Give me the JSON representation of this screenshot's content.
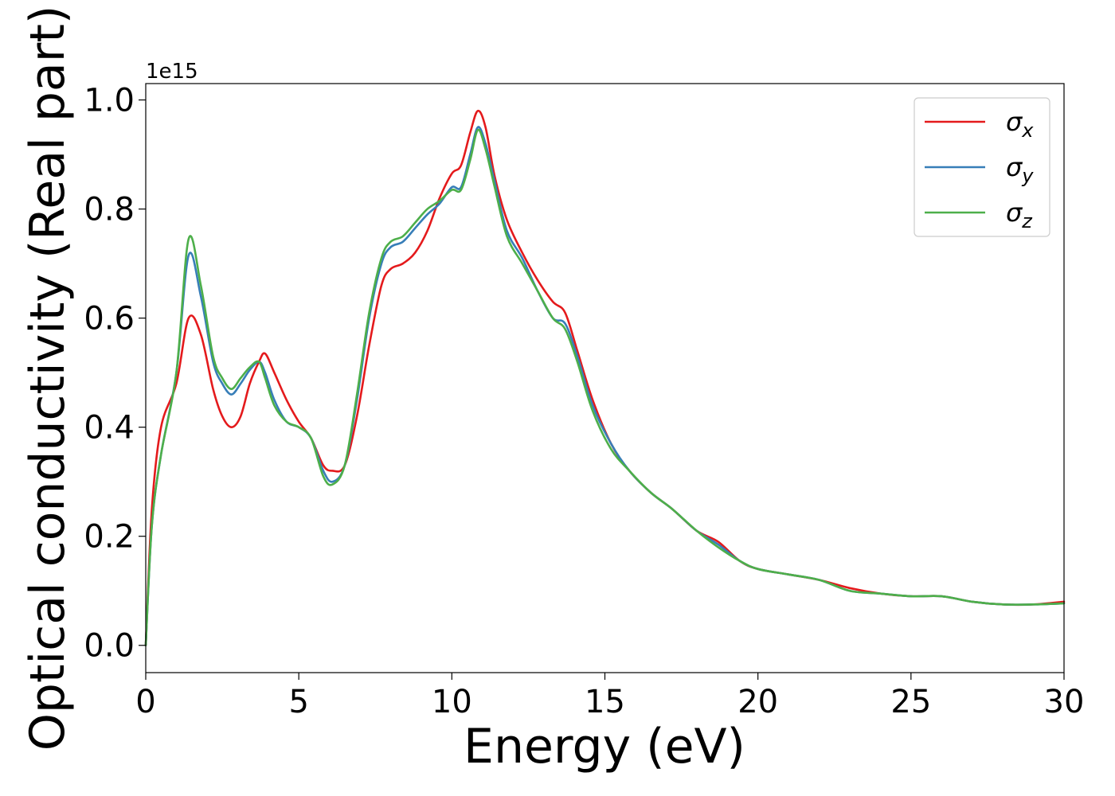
{
  "chart_data": {
    "type": "line",
    "xlabel": "Energy (eV)",
    "ylabel": "Optical conductivity (Real part)",
    "y_offset_text": "1e15",
    "xlim": [
      0,
      30
    ],
    "ylim": [
      -0.05,
      1.03
    ],
    "x_ticks": [
      0,
      5,
      10,
      15,
      20,
      25,
      30
    ],
    "y_ticks": [
      0.0,
      0.2,
      0.4,
      0.6,
      0.8,
      1.0
    ],
    "x_tick_labels": [
      "0",
      "5",
      "10",
      "15",
      "20",
      "25",
      "30"
    ],
    "y_tick_labels": [
      "0.0",
      "0.2",
      "0.4",
      "0.6",
      "0.8",
      "1.0"
    ],
    "grid": false,
    "legend_position": "top-right",
    "legend": [
      {
        "symbol": "σ",
        "sub": "x",
        "color": "#e41a1c"
      },
      {
        "symbol": "σ",
        "sub": "y",
        "color": "#377eb8"
      },
      {
        "symbol": "σ",
        "sub": "z",
        "color": "#4daf4a"
      }
    ],
    "series": [
      {
        "color": "#e41a1c",
        "x": [
          0.0,
          0.2,
          0.5,
          1.0,
          1.4,
          1.8,
          2.2,
          2.5,
          2.8,
          3.1,
          3.4,
          3.7,
          3.9,
          4.2,
          4.6,
          5.0,
          5.4,
          5.8,
          6.1,
          6.5,
          6.9,
          7.3,
          7.7,
          8.0,
          8.4,
          8.8,
          9.2,
          9.6,
          10.0,
          10.3,
          10.6,
          10.85,
          11.1,
          11.4,
          11.8,
          12.3,
          12.8,
          13.3,
          13.7,
          14.1,
          14.6,
          15.2,
          15.8,
          16.5,
          17.2,
          18.0,
          18.7,
          19.4,
          20.0,
          21.0,
          22.0,
          23.0,
          24.0,
          25.0,
          26.0,
          27.0,
          28.0,
          29.0,
          30.0
        ],
        "y": [
          0.0,
          0.25,
          0.4,
          0.48,
          0.6,
          0.57,
          0.47,
          0.42,
          0.4,
          0.42,
          0.48,
          0.52,
          0.535,
          0.5,
          0.45,
          0.41,
          0.38,
          0.33,
          0.32,
          0.33,
          0.42,
          0.55,
          0.66,
          0.69,
          0.7,
          0.72,
          0.76,
          0.82,
          0.865,
          0.88,
          0.94,
          0.98,
          0.95,
          0.86,
          0.78,
          0.72,
          0.67,
          0.63,
          0.61,
          0.54,
          0.45,
          0.37,
          0.32,
          0.28,
          0.25,
          0.21,
          0.19,
          0.155,
          0.14,
          0.13,
          0.12,
          0.105,
          0.095,
          0.09,
          0.09,
          0.08,
          0.075,
          0.075,
          0.08
        ]
      },
      {
        "color": "#377eb8",
        "x": [
          0.0,
          0.2,
          0.5,
          1.0,
          1.4,
          1.8,
          2.2,
          2.5,
          2.8,
          3.1,
          3.4,
          3.7,
          3.9,
          4.2,
          4.6,
          5.0,
          5.4,
          5.8,
          6.1,
          6.5,
          6.9,
          7.3,
          7.7,
          8.0,
          8.4,
          8.8,
          9.2,
          9.6,
          10.0,
          10.3,
          10.6,
          10.85,
          11.1,
          11.4,
          11.8,
          12.3,
          12.8,
          13.3,
          13.7,
          14.1,
          14.6,
          15.2,
          15.8,
          16.5,
          17.2,
          18.0,
          18.7,
          19.4,
          20.0,
          21.0,
          22.0,
          23.0,
          24.0,
          25.0,
          26.0,
          27.0,
          28.0,
          29.0,
          30.0
        ],
        "y": [
          0.0,
          0.22,
          0.35,
          0.5,
          0.715,
          0.64,
          0.52,
          0.48,
          0.46,
          0.48,
          0.505,
          0.52,
          0.5,
          0.45,
          0.41,
          0.4,
          0.38,
          0.32,
          0.3,
          0.33,
          0.45,
          0.6,
          0.7,
          0.73,
          0.74,
          0.765,
          0.79,
          0.81,
          0.84,
          0.84,
          0.9,
          0.95,
          0.92,
          0.85,
          0.76,
          0.71,
          0.65,
          0.6,
          0.59,
          0.53,
          0.44,
          0.37,
          0.32,
          0.28,
          0.25,
          0.21,
          0.185,
          0.155,
          0.14,
          0.13,
          0.12,
          0.1,
          0.095,
          0.09,
          0.09,
          0.08,
          0.075,
          0.075,
          0.077
        ]
      },
      {
        "color": "#4daf4a",
        "x": [
          0.0,
          0.2,
          0.5,
          1.0,
          1.4,
          1.8,
          2.2,
          2.5,
          2.8,
          3.1,
          3.4,
          3.7,
          3.9,
          4.2,
          4.6,
          5.0,
          5.4,
          5.8,
          6.1,
          6.5,
          6.9,
          7.3,
          7.7,
          8.0,
          8.4,
          8.8,
          9.2,
          9.6,
          10.0,
          10.3,
          10.6,
          10.85,
          11.1,
          11.4,
          11.8,
          12.3,
          12.8,
          13.3,
          13.7,
          14.1,
          14.6,
          15.2,
          15.8,
          16.5,
          17.2,
          18.0,
          18.7,
          19.4,
          20.0,
          21.0,
          22.0,
          23.0,
          24.0,
          25.0,
          26.0,
          27.0,
          28.0,
          29.0,
          30.0
        ],
        "y": [
          0.0,
          0.22,
          0.35,
          0.5,
          0.745,
          0.66,
          0.53,
          0.49,
          0.47,
          0.49,
          0.51,
          0.52,
          0.49,
          0.44,
          0.41,
          0.4,
          0.38,
          0.31,
          0.295,
          0.33,
          0.46,
          0.61,
          0.71,
          0.74,
          0.75,
          0.775,
          0.8,
          0.815,
          0.835,
          0.835,
          0.89,
          0.945,
          0.91,
          0.84,
          0.75,
          0.7,
          0.65,
          0.6,
          0.58,
          0.52,
          0.43,
          0.36,
          0.32,
          0.28,
          0.25,
          0.21,
          0.18,
          0.155,
          0.14,
          0.13,
          0.12,
          0.1,
          0.095,
          0.09,
          0.09,
          0.08,
          0.075,
          0.075,
          0.077
        ]
      }
    ]
  }
}
